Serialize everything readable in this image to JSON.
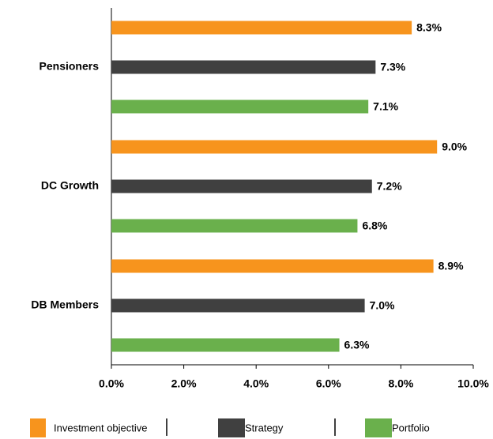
{
  "chart_data": {
    "type": "bar",
    "orientation": "horizontal",
    "categories": [
      "Pensioners",
      "DC Growth",
      "DB Members"
    ],
    "series": [
      {
        "name": "Investment objective",
        "color": "#f7941d",
        "values": [
          8.3,
          9.0,
          8.9
        ],
        "value_labels": [
          "8.3%",
          "9.0%",
          "8.9%"
        ]
      },
      {
        "name": "Strategy",
        "color": "#404040",
        "values": [
          7.3,
          7.2,
          7.0
        ],
        "value_labels": [
          "7.3%",
          "7.2%",
          "7.0%"
        ]
      },
      {
        "name": "Portfolio",
        "color": "#6ab04c",
        "values": [
          7.1,
          6.8,
          6.3
        ],
        "value_labels": [
          "7.1%",
          "6.8%",
          "6.3%"
        ]
      }
    ],
    "xlim": [
      0,
      10
    ],
    "xticks": [
      {
        "value": 0,
        "label": "0.0%"
      },
      {
        "value": 2,
        "label": "2.0%"
      },
      {
        "value": 4,
        "label": "4.0%"
      },
      {
        "value": 6,
        "label": "6.0%"
      },
      {
        "value": 8,
        "label": "8.0%"
      },
      {
        "value": 10,
        "label": "10.0%"
      }
    ],
    "legend": "bottom"
  }
}
